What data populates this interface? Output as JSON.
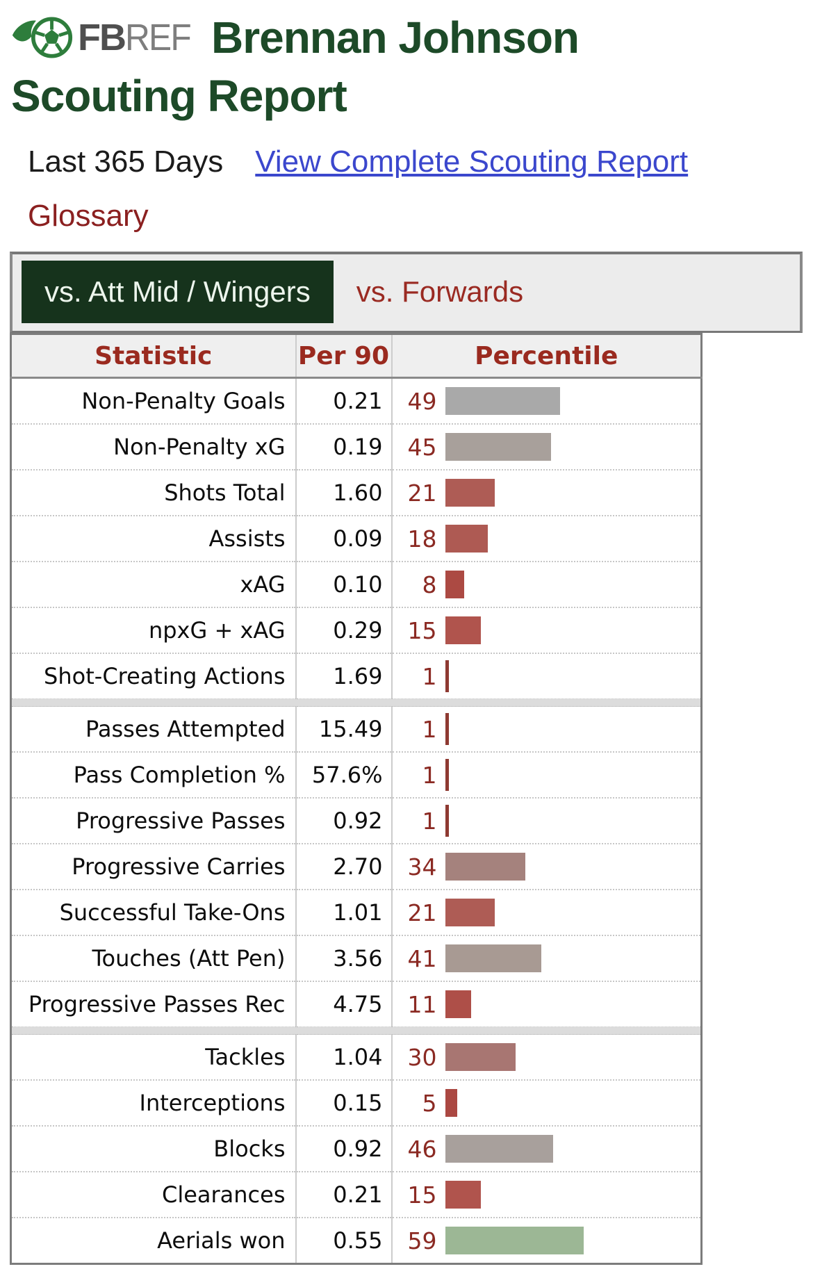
{
  "header": {
    "logo_fb": "FB",
    "logo_ref": "REF",
    "title_line1": "Brennan Johnson",
    "title_line2": "Scouting Report",
    "brand_green": "#2e7d3c",
    "title_color": "#1d4a28"
  },
  "meta": {
    "period_label": "Last 365 Days",
    "link_label": "View Complete Scouting Report",
    "glossary_label": "Glossary",
    "link_color": "#3b47cd",
    "glossary_color": "#8b2020"
  },
  "tabs": [
    {
      "label": "vs. Att Mid / Wingers",
      "active": true
    },
    {
      "label": "vs. Forwards",
      "active": false
    }
  ],
  "table": {
    "headers": [
      "Statistic",
      "Per 90",
      "Percentile"
    ],
    "header_text_color": "#9a2a1f",
    "percentile_number_color": "#8b2a23",
    "groups": [
      {
        "rows": [
          {
            "stat": "Non-Penalty Goals",
            "per90": "0.21",
            "percentile": 49,
            "bar_color": "#a9a9a9"
          },
          {
            "stat": "Non-Penalty xG",
            "per90": "0.19",
            "percentile": 45,
            "bar_color": "#a8a09b"
          },
          {
            "stat": "Shots Total",
            "per90": "1.60",
            "percentile": 21,
            "bar_color": "#ae5c55"
          },
          {
            "stat": "Assists",
            "per90": "0.09",
            "percentile": 18,
            "bar_color": "#ae5a53"
          },
          {
            "stat": "xAG",
            "per90": "0.10",
            "percentile": 8,
            "bar_color": "#ac4a43"
          },
          {
            "stat": "npxG + xAG",
            "per90": "0.29",
            "percentile": 15,
            "bar_color": "#b0544d"
          },
          {
            "stat": "Shot-Creating Actions",
            "per90": "1.69",
            "percentile": 1,
            "bar_color": "#8e3a32"
          }
        ]
      },
      {
        "rows": [
          {
            "stat": "Passes Attempted",
            "per90": "15.49",
            "percentile": 1,
            "bar_color": "#8e3a32"
          },
          {
            "stat": "Pass Completion %",
            "per90": "57.6%",
            "percentile": 1,
            "bar_color": "#8e3a32"
          },
          {
            "stat": "Progressive Passes",
            "per90": "0.92",
            "percentile": 1,
            "bar_color": "#8e3a32"
          },
          {
            "stat": "Progressive Carries",
            "per90": "2.70",
            "percentile": 34,
            "bar_color": "#a5827d"
          },
          {
            "stat": "Successful Take-Ons",
            "per90": "1.01",
            "percentile": 21,
            "bar_color": "#ae5c55"
          },
          {
            "stat": "Touches (Att Pen)",
            "per90": "3.56",
            "percentile": 41,
            "bar_color": "#a89a93"
          },
          {
            "stat": "Progressive Passes Rec",
            "per90": "4.75",
            "percentile": 11,
            "bar_color": "#ae4f48"
          }
        ]
      },
      {
        "rows": [
          {
            "stat": "Tackles",
            "per90": "1.04",
            "percentile": 30,
            "bar_color": "#a87672"
          },
          {
            "stat": "Interceptions",
            "per90": "0.15",
            "percentile": 5,
            "bar_color": "#ab4842"
          },
          {
            "stat": "Blocks",
            "per90": "0.92",
            "percentile": 46,
            "bar_color": "#a8a09c"
          },
          {
            "stat": "Clearances",
            "per90": "0.21",
            "percentile": 15,
            "bar_color": "#b0544d"
          },
          {
            "stat": "Aerials won",
            "per90": "0.55",
            "percentile": 59,
            "bar_color": "#9cb795"
          }
        ]
      }
    ]
  }
}
